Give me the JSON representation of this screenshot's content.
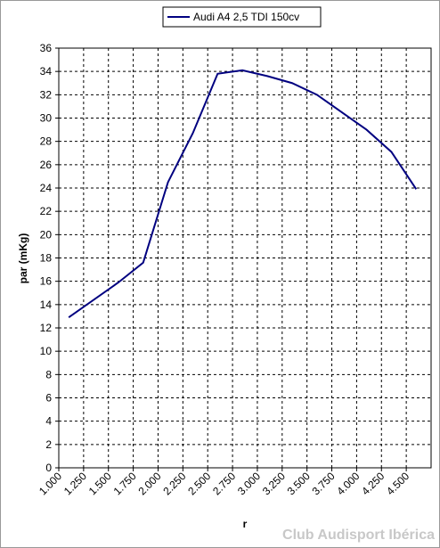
{
  "chart_data": {
    "type": "line",
    "x": [
      1100,
      1600,
      1850,
      2100,
      2350,
      2600,
      2850,
      3100,
      3350,
      3600,
      3850,
      4100,
      4350,
      4600
    ],
    "series": [
      {
        "name": "Audi A4 2,5 TDI 150cv",
        "color": "#000080",
        "values": [
          12.9,
          15.9,
          17.6,
          24.5,
          28.7,
          33.8,
          34.1,
          33.6,
          33.0,
          32.0,
          30.5,
          29.0,
          27.1,
          23.9
        ]
      }
    ],
    "xlim": [
      1000,
      4750
    ],
    "xticks": [
      {
        "value": 1000,
        "label": "1.000"
      },
      {
        "value": 1250,
        "label": "1.250"
      },
      {
        "value": 1500,
        "label": "1.500"
      },
      {
        "value": 1750,
        "label": "1.750"
      },
      {
        "value": 2000,
        "label": "2.000"
      },
      {
        "value": 2250,
        "label": "2.250"
      },
      {
        "value": 2500,
        "label": "2.500"
      },
      {
        "value": 2750,
        "label": "2.750"
      },
      {
        "value": 3000,
        "label": "3.000"
      },
      {
        "value": 3250,
        "label": "3.250"
      },
      {
        "value": 3500,
        "label": "3.500"
      },
      {
        "value": 3750,
        "label": "3.750"
      },
      {
        "value": 4000,
        "label": "4.000"
      },
      {
        "value": 4250,
        "label": "4.250"
      },
      {
        "value": 4500,
        "label": "4.500"
      }
    ],
    "ylim": [
      0,
      36
    ],
    "yticks": [
      0,
      2,
      4,
      6,
      8,
      10,
      12,
      14,
      16,
      18,
      20,
      22,
      24,
      26,
      28,
      30,
      32,
      34,
      36
    ],
    "x_label": "r",
    "y_label": "par (mKg)",
    "grid": true,
    "legend": "top",
    "watermark": "Club Audisport Ibérica"
  }
}
